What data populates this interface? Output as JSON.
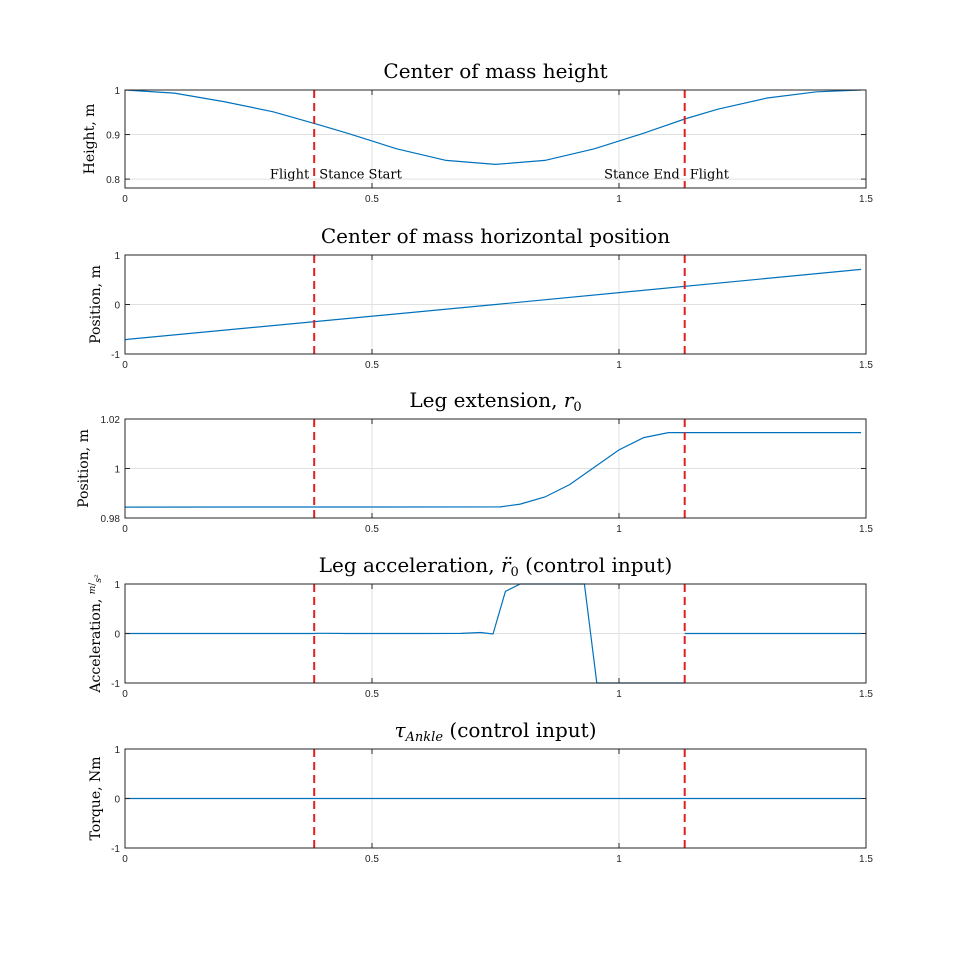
{
  "colors": {
    "line": "#0072bd",
    "marker": "#e02020",
    "grid": "#e0e0e0",
    "axis": "#262626"
  },
  "chart_data": [
    {
      "type": "line",
      "title": "Center of mass height",
      "xlabel": "",
      "ylabel": "Height, m",
      "xlim": [
        0,
        1.5
      ],
      "ylim": [
        0.78,
        1.0
      ],
      "xticks": [
        0,
        0.5,
        1,
        1.5
      ],
      "xtick_labels": [
        "0",
        "0.5",
        "1",
        "1.5"
      ],
      "yticks": [
        0.8,
        0.9,
        1.0
      ],
      "ytick_labels": [
        "0.8",
        "0.9",
        "1"
      ],
      "grid": true,
      "vlines": [
        0.383,
        1.133
      ],
      "annotations": [
        {
          "text": "Flight",
          "x": 0.383,
          "y": 0.812,
          "anchor": "end"
        },
        {
          "text": "Stance Start",
          "x": 0.383,
          "y": 0.812,
          "anchor": "start"
        },
        {
          "text": "Stance End",
          "x": 1.133,
          "y": 0.812,
          "anchor": "end"
        },
        {
          "text": "Flight",
          "x": 1.133,
          "y": 0.812,
          "anchor": "start"
        }
      ],
      "series": [
        {
          "x": [
            0,
            0.1,
            0.2,
            0.3,
            0.383,
            0.45,
            0.55,
            0.65,
            0.75,
            0.85,
            0.95,
            1.05,
            1.133,
            1.2,
            1.3,
            1.4,
            1.49
          ],
          "y": [
            1.0,
            0.993,
            0.974,
            0.951,
            0.925,
            0.903,
            0.868,
            0.842,
            0.833,
            0.842,
            0.868,
            0.903,
            0.935,
            0.957,
            0.982,
            0.996,
            1.0
          ]
        }
      ]
    },
    {
      "type": "line",
      "title": "Center of mass horizontal position",
      "xlabel": "",
      "ylabel": "Position, m",
      "xlim": [
        0,
        1.5
      ],
      "ylim": [
        -1,
        1
      ],
      "xticks": [
        0,
        0.5,
        1,
        1.5
      ],
      "xtick_labels": [
        "0",
        "0.5",
        "1",
        "1.5"
      ],
      "yticks": [
        -1,
        0,
        1
      ],
      "ytick_labels": [
        "-1",
        "0",
        "1"
      ],
      "grid": true,
      "vlines": [
        0.383,
        1.133
      ],
      "annotations": [],
      "series": [
        {
          "x": [
            0,
            0.75,
            1.49
          ],
          "y": [
            -0.71,
            0.0,
            0.71
          ]
        }
      ]
    },
    {
      "type": "line",
      "title": "Leg extension, r0",
      "xlabel": "",
      "ylabel": "Position, m",
      "xlim": [
        0,
        1.5
      ],
      "ylim": [
        0.98,
        1.02
      ],
      "xticks": [
        0,
        0.5,
        1,
        1.5
      ],
      "xtick_labels": [
        "0",
        "0.5",
        "1",
        "1.5"
      ],
      "yticks": [
        0.98,
        1.0,
        1.02
      ],
      "ytick_labels": [
        "0.98",
        "1",
        "1.02"
      ],
      "grid": true,
      "vlines": [
        0.383,
        1.133
      ],
      "annotations": [],
      "series": [
        {
          "x": [
            0,
            0.76,
            0.8,
            0.85,
            0.9,
            0.95,
            1.0,
            1.05,
            1.1,
            1.133,
            1.49
          ],
          "y": [
            0.9844,
            0.9845,
            0.9856,
            0.9885,
            0.9935,
            1.0005,
            1.0075,
            1.0125,
            1.0145,
            1.0145,
            1.0145
          ]
        }
      ]
    },
    {
      "type": "line",
      "title": "Leg acceleration, r̈0 (control input)",
      "xlabel": "",
      "ylabel": "Acceleration, m/s²",
      "xlim": [
        0,
        1.5
      ],
      "ylim": [
        -1,
        1
      ],
      "xticks": [
        0,
        0.5,
        1,
        1.5
      ],
      "xtick_labels": [
        "0",
        "0.5",
        "1",
        "1.5"
      ],
      "yticks": [
        -1,
        0,
        1
      ],
      "ytick_labels": [
        "-1",
        "0",
        "1"
      ],
      "grid": true,
      "vlines": [
        0.383,
        1.133
      ],
      "annotations": [],
      "series": [
        {
          "x": [
            0,
            0.383,
            0.39,
            0.41,
            0.45,
            0.6,
            0.68,
            0.72,
            0.745,
            0.77,
            0.8,
            0.93,
            0.955,
            1.133
          ],
          "y": [
            0,
            0,
            0.005,
            0.005,
            0.0,
            0.0,
            0.003,
            0.02,
            -0.01,
            0.85,
            1.0,
            1.0,
            -1.0,
            -1.0
          ]
        },
        {
          "x": [
            1.133,
            1.49
          ],
          "y": [
            0,
            0
          ]
        }
      ]
    },
    {
      "type": "line",
      "title": "τAnkle (control input)",
      "xlabel": "",
      "ylabel": "Torque, Nm",
      "xlim": [
        0,
        1.5
      ],
      "ylim": [
        -1,
        1
      ],
      "xticks": [
        0,
        0.5,
        1,
        1.5
      ],
      "xtick_labels": [
        "0",
        "0.5",
        "1",
        "1.5"
      ],
      "yticks": [
        -1,
        0,
        1
      ],
      "ytick_labels": [
        "-1",
        "0",
        "1"
      ],
      "grid": true,
      "vlines": [
        0.383,
        1.133
      ],
      "annotations": [],
      "series": [
        {
          "x": [
            0,
            1.49
          ],
          "y": [
            0,
            0
          ]
        }
      ]
    }
  ]
}
